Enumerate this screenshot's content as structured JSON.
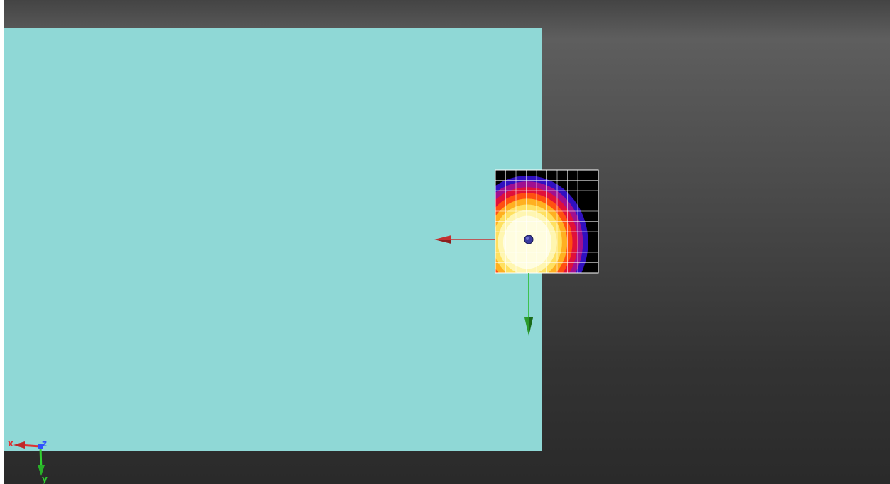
{
  "scene": {
    "background_top_color": "#5e5e5e",
    "background_bottom_color": "#2a2a2a",
    "plane_color": "#8fd8d6",
    "source": {
      "grid_cells": 10,
      "center_marker_color": "#3a3aa0",
      "colormap": [
        "#fffde0",
        "#fff6b0",
        "#ffe060",
        "#ffb020",
        "#ff5010",
        "#e0103a",
        "#a01090",
        "#3010c0",
        "#000000"
      ]
    },
    "local_axes": {
      "x_color": "#cc3030",
      "y_color": "#22bb22"
    }
  },
  "orientation_triad": {
    "x_label": "x",
    "y_label": "y",
    "z_label": "z",
    "x_color": "#e03030",
    "y_color": "#30d030",
    "z_color": "#3050ff"
  }
}
